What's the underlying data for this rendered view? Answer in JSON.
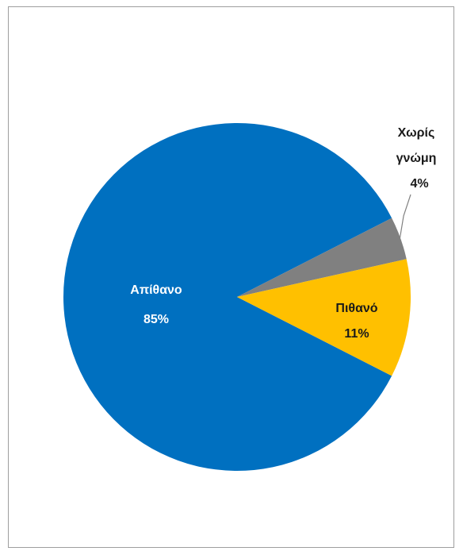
{
  "chart_data": {
    "type": "pie",
    "title": "",
    "slices": [
      {
        "label": "Απίθανο",
        "value": 85,
        "display": "85%",
        "color": "#0070C0",
        "label_color": "#ffffff"
      },
      {
        "label": "Πιθανό",
        "value": 11,
        "display": "11%",
        "color": "#FFC000",
        "label_color": "#1a1a1a"
      },
      {
        "label_lines": [
          "Χωρίς",
          "γνώμη"
        ],
        "label": "Χωρίς γνώμη",
        "value": 4,
        "display": "4%",
        "color": "#808080",
        "label_color": "#1a1a1a"
      }
    ],
    "legend": "none",
    "data_labels": "category and percentage"
  }
}
